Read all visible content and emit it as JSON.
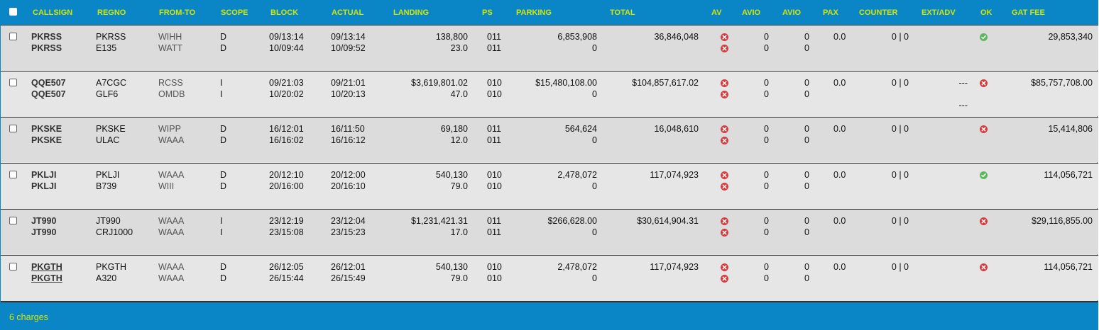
{
  "header": {
    "columns": [
      "CALLSIGN",
      "REGNO",
      "FROM-TO",
      "SCOPE",
      "BLOCK",
      "ACTUAL",
      "LANDING",
      "PS",
      "PARKING",
      "TOTAL",
      "AV",
      "AVIO",
      "AVIO",
      "PAX",
      "COUNTER",
      "EXT/ADV",
      "OK",
      "GAT FEE"
    ]
  },
  "rows": [
    {
      "callsign": [
        "PKRSS",
        "PKRSS"
      ],
      "regno": [
        "PKRSS",
        "E135"
      ],
      "fromto": [
        "WIHH",
        "WATT"
      ],
      "scope": [
        "D",
        "D"
      ],
      "block": [
        "09/13:14",
        "10/09:44"
      ],
      "actual": [
        "09/13:14",
        "10/09:52"
      ],
      "landing": [
        "138,800",
        "23.0"
      ],
      "ps": [
        "011",
        "011"
      ],
      "parking": [
        "6,853,908",
        "0"
      ],
      "total": "36,846,048",
      "av": [
        "x",
        "x"
      ],
      "avio1": [
        "0",
        "0"
      ],
      "avio2": [
        "0",
        "0"
      ],
      "pax": "0.0",
      "counter": "0 | 0",
      "ext": [
        "",
        ""
      ],
      "ok": "ok",
      "gat": "29,853,340"
    },
    {
      "callsign": [
        "QQE507",
        "QQE507"
      ],
      "regno": [
        "A7CGC",
        "GLF6"
      ],
      "fromto": [
        "RCSS",
        "OMDB"
      ],
      "scope": [
        "I",
        "I"
      ],
      "block": [
        "09/21:03",
        "10/20:02"
      ],
      "actual": [
        "09/21:01",
        "10/20:13"
      ],
      "landing": [
        "$3,619,801.02",
        "47.0"
      ],
      "ps": [
        "010",
        "010"
      ],
      "parking": [
        "$15,480,108.00",
        "0"
      ],
      "total": "$104,857,617.02",
      "av": [
        "x",
        "x"
      ],
      "avio1": [
        "0",
        "0"
      ],
      "avio2": [
        "0",
        "0"
      ],
      "pax": "0.0",
      "counter": "0 | 0",
      "ext": [
        "---",
        "---"
      ],
      "ok": "x",
      "gat": "$85,757,708.00"
    },
    {
      "callsign": [
        "PKSKE",
        "PKSKE"
      ],
      "regno": [
        "PKSKE",
        "ULAC"
      ],
      "fromto": [
        "WIPP",
        "WAAA"
      ],
      "scope": [
        "D",
        "D"
      ],
      "block": [
        "16/12:01",
        "16/16:02"
      ],
      "actual": [
        "16/11:50",
        "16/16:12"
      ],
      "landing": [
        "69,180",
        "12.0"
      ],
      "ps": [
        "011",
        "011"
      ],
      "parking": [
        "564,624",
        "0"
      ],
      "total": "16,048,610",
      "av": [
        "x",
        "x"
      ],
      "avio1": [
        "0",
        "0"
      ],
      "avio2": [
        "0",
        "0"
      ],
      "pax": "0.0",
      "counter": "0 | 0",
      "ext": [
        "",
        ""
      ],
      "ok": "x",
      "gat": "15,414,806"
    },
    {
      "callsign": [
        "PKLJI",
        "PKLJI"
      ],
      "regno": [
        "PKLJI",
        "B739"
      ],
      "fromto": [
        "WAAA",
        "WIII"
      ],
      "scope": [
        "D",
        "D"
      ],
      "block": [
        "20/12:10",
        "20/16:00"
      ],
      "actual": [
        "20/12:00",
        "20/16:10"
      ],
      "landing": [
        "540,130",
        "79.0"
      ],
      "ps": [
        "010",
        "010"
      ],
      "parking": [
        "2,478,072",
        "0"
      ],
      "total": "117,074,923",
      "av": [
        "x",
        "x"
      ],
      "avio1": [
        "0",
        "0"
      ],
      "avio2": [
        "0",
        "0"
      ],
      "pax": "0.0",
      "counter": "0 | 0",
      "ext": [
        "",
        ""
      ],
      "ok": "ok",
      "gat": "114,056,721"
    },
    {
      "callsign": [
        "JT990",
        "JT990"
      ],
      "regno": [
        "JT990",
        "CRJ1000"
      ],
      "fromto": [
        "WAAA",
        "WAAA"
      ],
      "scope": [
        "I",
        "I"
      ],
      "block": [
        "23/12:19",
        "23/15:08"
      ],
      "actual": [
        "23/12:04",
        "23/15:23"
      ],
      "landing": [
        "$1,231,421.31",
        "17.0"
      ],
      "ps": [
        "011",
        "011"
      ],
      "parking": [
        "$266,628.00",
        "0"
      ],
      "total": "$30,614,904.31",
      "av": [
        "x",
        "x"
      ],
      "avio1": [
        "0",
        "0"
      ],
      "avio2": [
        "0",
        "0"
      ],
      "pax": "0.0",
      "counter": "0 | 0",
      "ext": [
        "",
        ""
      ],
      "ok": "x",
      "gat": "$29,116,855.00"
    },
    {
      "callsign": [
        "PKGTH",
        "PKGTH"
      ],
      "regno": [
        "PKGTH",
        "A320"
      ],
      "fromto": [
        "WAAA",
        "WAAA"
      ],
      "scope": [
        "D",
        "D"
      ],
      "block": [
        "26/12:05",
        "26/15:44"
      ],
      "actual": [
        "26/12:01",
        "26/15:49"
      ],
      "landing": [
        "540,130",
        "79.0"
      ],
      "ps": [
        "010",
        "010"
      ],
      "parking": [
        "2,478,072",
        "0"
      ],
      "total": "117,074,923",
      "av": [
        "x",
        "x"
      ],
      "avio1": [
        "0",
        "0"
      ],
      "avio2": [
        "0",
        "0"
      ],
      "pax": "0.0",
      "counter": "0 | 0",
      "ext": [
        "",
        ""
      ],
      "ok": "x",
      "gat": "114,056,721"
    }
  ],
  "footer": {
    "summary": "6 charges"
  },
  "colors": {
    "header_bg": "#0a86c6",
    "header_text": "#d4e600",
    "status_error": "#d63a3a",
    "status_ok": "#5cb85c"
  }
}
